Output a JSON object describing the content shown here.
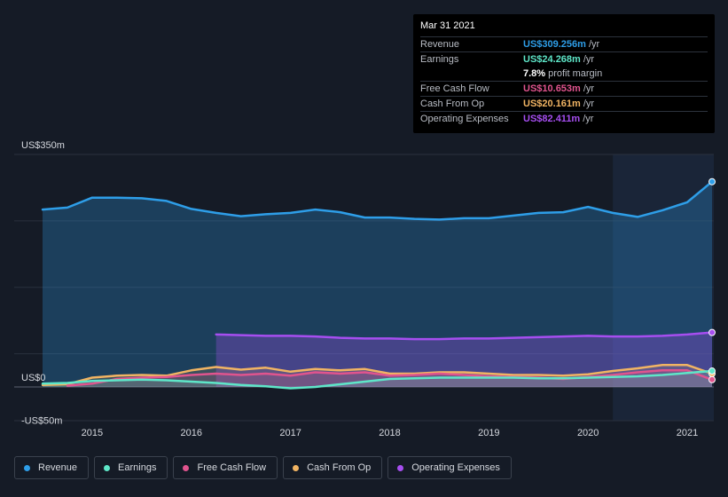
{
  "tooltip": {
    "date": "Mar 31 2021",
    "rows": [
      {
        "label": "Revenue",
        "value": "US$309.256m",
        "unit": "/yr",
        "color": "#2e9ee8"
      },
      {
        "label": "Earnings",
        "value": "US$24.268m",
        "unit": "/yr",
        "color": "#5ee6c8"
      },
      {
        "label": "",
        "value": "7.8%",
        "unit": "profit margin",
        "color": "#ffffff"
      },
      {
        "label": "Free Cash Flow",
        "value": "US$10.653m",
        "unit": "/yr",
        "color": "#e0548e"
      },
      {
        "label": "Cash From Op",
        "value": "US$20.161m",
        "unit": "/yr",
        "color": "#f1b463"
      },
      {
        "label": "Operating Expenses",
        "value": "US$82.411m",
        "unit": "/yr",
        "color": "#a64ef0"
      }
    ]
  },
  "legend": [
    {
      "label": "Revenue",
      "color": "#2e9ee8"
    },
    {
      "label": "Earnings",
      "color": "#5ee6c8"
    },
    {
      "label": "Free Cash Flow",
      "color": "#e0548e"
    },
    {
      "label": "Cash From Op",
      "color": "#f1b463"
    },
    {
      "label": "Operating Expenses",
      "color": "#a64ef0"
    }
  ],
  "chart_data": {
    "type": "area",
    "y_labels": [
      {
        "value": 350,
        "text": "US$350m"
      },
      {
        "value": 0,
        "text": "US$0"
      },
      {
        "value": -50,
        "text": "-US$50m"
      }
    ],
    "ylim": [
      -50,
      350
    ],
    "xlim": [
      2014.5,
      2021.25
    ],
    "x_ticks": [
      2015,
      2016,
      2017,
      2018,
      2019,
      2020,
      2021
    ],
    "x_tick_labels": [
      "2015",
      "2016",
      "2017",
      "2018",
      "2019",
      "2020",
      "2021"
    ],
    "forecast_start": 2020.25,
    "series": [
      {
        "name": "Revenue",
        "color": "#2e9ee8",
        "points": [
          [
            2014.5,
            267
          ],
          [
            2014.75,
            270
          ],
          [
            2015.0,
            285
          ],
          [
            2015.25,
            285
          ],
          [
            2015.5,
            284
          ],
          [
            2015.75,
            280
          ],
          [
            2016.0,
            268
          ],
          [
            2016.25,
            262
          ],
          [
            2016.5,
            257
          ],
          [
            2016.75,
            260
          ],
          [
            2017.0,
            262
          ],
          [
            2017.25,
            267
          ],
          [
            2017.5,
            263
          ],
          [
            2017.75,
            255
          ],
          [
            2018.0,
            255
          ],
          [
            2018.25,
            253
          ],
          [
            2018.5,
            252
          ],
          [
            2018.75,
            254
          ],
          [
            2019.0,
            254
          ],
          [
            2019.25,
            258
          ],
          [
            2019.5,
            262
          ],
          [
            2019.75,
            263
          ],
          [
            2020.0,
            271
          ],
          [
            2020.25,
            262
          ],
          [
            2020.5,
            256
          ],
          [
            2020.75,
            266
          ],
          [
            2021.0,
            278
          ],
          [
            2021.25,
            309
          ]
        ]
      },
      {
        "name": "Earnings",
        "color": "#5ee6c8",
        "points": [
          [
            2014.5,
            5
          ],
          [
            2014.75,
            6
          ],
          [
            2015.0,
            9
          ],
          [
            2015.25,
            10
          ],
          [
            2015.5,
            11
          ],
          [
            2015.75,
            10
          ],
          [
            2016.0,
            8
          ],
          [
            2016.25,
            6
          ],
          [
            2016.5,
            3
          ],
          [
            2016.75,
            1
          ],
          [
            2017.0,
            -2
          ],
          [
            2017.25,
            0
          ],
          [
            2017.5,
            4
          ],
          [
            2017.75,
            8
          ],
          [
            2018.0,
            12
          ],
          [
            2018.25,
            13
          ],
          [
            2018.5,
            14
          ],
          [
            2018.75,
            14
          ],
          [
            2019.0,
            14
          ],
          [
            2019.25,
            14
          ],
          [
            2019.5,
            13
          ],
          [
            2019.75,
            13
          ],
          [
            2020.0,
            14
          ],
          [
            2020.25,
            15
          ],
          [
            2020.5,
            16
          ],
          [
            2020.75,
            18
          ],
          [
            2021.0,
            21
          ],
          [
            2021.25,
            24
          ]
        ]
      },
      {
        "name": "Free Cash Flow",
        "color": "#e0548e",
        "points": [
          [
            2014.75,
            2
          ],
          [
            2015.0,
            5
          ],
          [
            2015.25,
            12
          ],
          [
            2015.5,
            14
          ],
          [
            2015.75,
            15
          ],
          [
            2016.0,
            18
          ],
          [
            2016.25,
            20
          ],
          [
            2016.5,
            18
          ],
          [
            2016.75,
            20
          ],
          [
            2017.0,
            17
          ],
          [
            2017.25,
            22
          ],
          [
            2017.5,
            20
          ],
          [
            2017.75,
            22
          ],
          [
            2018.0,
            17
          ],
          [
            2018.25,
            18
          ],
          [
            2018.5,
            20
          ],
          [
            2018.75,
            18
          ],
          [
            2019.0,
            16
          ],
          [
            2019.25,
            15
          ],
          [
            2019.5,
            14
          ],
          [
            2019.75,
            12
          ],
          [
            2020.0,
            15
          ],
          [
            2020.25,
            18
          ],
          [
            2020.5,
            22
          ],
          [
            2020.75,
            25
          ],
          [
            2021.0,
            25
          ],
          [
            2021.25,
            11
          ]
        ]
      },
      {
        "name": "Cash From Op",
        "color": "#f1b463",
        "points": [
          [
            2014.5,
            3
          ],
          [
            2014.75,
            4
          ],
          [
            2015.0,
            14
          ],
          [
            2015.25,
            17
          ],
          [
            2015.5,
            18
          ],
          [
            2015.75,
            17
          ],
          [
            2016.0,
            25
          ],
          [
            2016.25,
            30
          ],
          [
            2016.5,
            26
          ],
          [
            2016.75,
            29
          ],
          [
            2017.0,
            23
          ],
          [
            2017.25,
            27
          ],
          [
            2017.5,
            25
          ],
          [
            2017.75,
            27
          ],
          [
            2018.0,
            20
          ],
          [
            2018.25,
            20
          ],
          [
            2018.5,
            22
          ],
          [
            2018.75,
            22
          ],
          [
            2019.0,
            20
          ],
          [
            2019.25,
            18
          ],
          [
            2019.5,
            18
          ],
          [
            2019.75,
            17
          ],
          [
            2020.0,
            19
          ],
          [
            2020.25,
            24
          ],
          [
            2020.5,
            28
          ],
          [
            2020.75,
            33
          ],
          [
            2021.0,
            33
          ],
          [
            2021.25,
            20
          ]
        ]
      },
      {
        "name": "Operating Expenses",
        "color": "#a64ef0",
        "points": [
          [
            2016.25,
            79
          ],
          [
            2016.5,
            78
          ],
          [
            2016.75,
            77
          ],
          [
            2017.0,
            77
          ],
          [
            2017.25,
            76
          ],
          [
            2017.5,
            74
          ],
          [
            2017.75,
            73
          ],
          [
            2018.0,
            73
          ],
          [
            2018.25,
            72
          ],
          [
            2018.5,
            72
          ],
          [
            2018.75,
            73
          ],
          [
            2019.0,
            73
          ],
          [
            2019.25,
            74
          ],
          [
            2019.5,
            75
          ],
          [
            2019.75,
            76
          ],
          [
            2020.0,
            77
          ],
          [
            2020.25,
            76
          ],
          [
            2020.5,
            76
          ],
          [
            2020.75,
            77
          ],
          [
            2021.0,
            79
          ],
          [
            2021.25,
            82
          ]
        ]
      }
    ]
  }
}
